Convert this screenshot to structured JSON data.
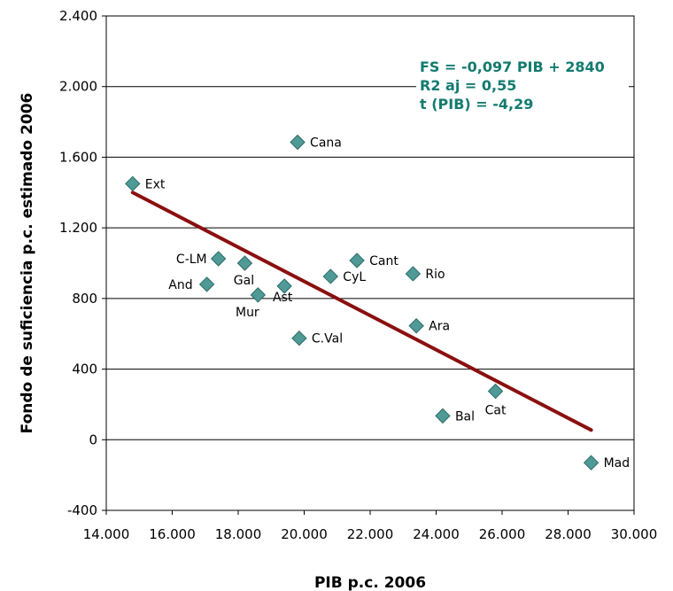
{
  "chart_data": {
    "type": "scatter",
    "xlabel": "PIB p.c. 2006",
    "ylabel": "Fondo de suficiencia p.c. estimado 2006",
    "xlim": [
      14000,
      30000
    ],
    "ylim": [
      -400,
      2400
    ],
    "x_ticks": [
      14000,
      16000,
      18000,
      20000,
      22000,
      24000,
      26000,
      28000,
      30000
    ],
    "x_tick_labels": [
      "14.000",
      "16.000",
      "18.000",
      "20.000",
      "22.000",
      "24.000",
      "26.000",
      "28.000",
      "30.000"
    ],
    "y_ticks": [
      -400,
      0,
      400,
      800,
      1200,
      1600,
      2000,
      2400
    ],
    "y_tick_labels": [
      "-400",
      "0",
      "400",
      "800",
      "1.200",
      "1.600",
      "2.000",
      "2.400"
    ],
    "grid": "horizontal",
    "marker_color": "#4f9a96",
    "trend_color": "#8b0f0f",
    "annotation_color": "#137b6f",
    "annotations": [
      "FS = -0,097 PIB + 2840",
      "R2 aj = 0,55",
      "t (PIB) = -4,29"
    ],
    "trendline": {
      "x": [
        14800,
        28700
      ],
      "y": [
        1400,
        55
      ]
    },
    "points": [
      {
        "label": "Ext",
        "x": 14800,
        "y": 1450
      },
      {
        "label": "Cana",
        "x": 19800,
        "y": 1685
      },
      {
        "label": "C-LM",
        "x": 17400,
        "y": 1025
      },
      {
        "label": "Gal",
        "x": 18200,
        "y": 1000
      },
      {
        "label": "And",
        "x": 17050,
        "y": 880
      },
      {
        "label": "Mur",
        "x": 18600,
        "y": 820
      },
      {
        "label": "Ast",
        "x": 19400,
        "y": 870
      },
      {
        "label": "CyL",
        "x": 20800,
        "y": 925
      },
      {
        "label": "Cant",
        "x": 21600,
        "y": 1015
      },
      {
        "label": "Rio",
        "x": 23300,
        "y": 940
      },
      {
        "label": "C.Val",
        "x": 19850,
        "y": 575
      },
      {
        "label": "Ara",
        "x": 23400,
        "y": 645
      },
      {
        "label": "Cat",
        "x": 25800,
        "y": 275
      },
      {
        "label": "Bal",
        "x": 24200,
        "y": 135
      },
      {
        "label": "Mad",
        "x": 28700,
        "y": -130
      }
    ]
  }
}
